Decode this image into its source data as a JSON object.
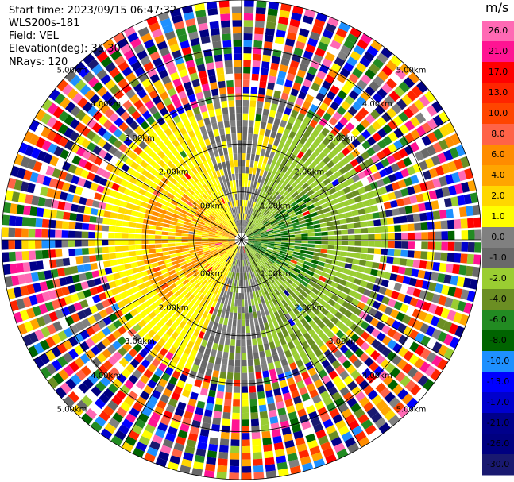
{
  "info": {
    "start_time": "Start time: 2023/09/15 06:47:32",
    "instrument": "WLS200s-181",
    "field": "Field: VEL",
    "elevation": "Elevation(deg): 35.30",
    "nrays": "NRays: 120"
  },
  "chart_data": {
    "type": "heatmap",
    "projection": "polar-ppi",
    "range_rings": [
      "1.00km",
      "2.00km",
      "3.00km",
      "4.00km",
      "5.00km"
    ],
    "range_max_km": 5.0,
    "colorbar": {
      "unit": "m/s",
      "tick_labels": [
        "26.0",
        "21.0",
        "17.0",
        "13.0",
        "10.0",
        "8.0",
        "6.0",
        "4.0",
        "2.0",
        "1.0",
        "0.0",
        "-1.0",
        "-2.0",
        "-4.0",
        "-6.0",
        "-8.0",
        "-10.0",
        "-13.0",
        "-17.0",
        "-21.0",
        "-26.0",
        "-30.0"
      ],
      "colors": [
        "#ff69b4",
        "#ff1493",
        "#ff0000",
        "#ff2500",
        "#ff4500",
        "#ff6347",
        "#ff8c00",
        "#ffa500",
        "#ffd700",
        "#ffff00",
        "#808080",
        "#696969",
        "#9acd32",
        "#6b8e23",
        "#228b22",
        "#006400",
        "#1e90ff",
        "#0000ff",
        "#0000cd",
        "#00008b",
        "#000080",
        "#191970"
      ]
    },
    "pattern": {
      "positive_sector": "west, yellow/orange (0 to 6 m/s) within ~3 km",
      "negative_sector": "east, green (-1 to -8 m/s) within ~2.5 km",
      "near_zero_band": "grey along north-south axis",
      "noise_beyond_km": 3.0
    }
  }
}
